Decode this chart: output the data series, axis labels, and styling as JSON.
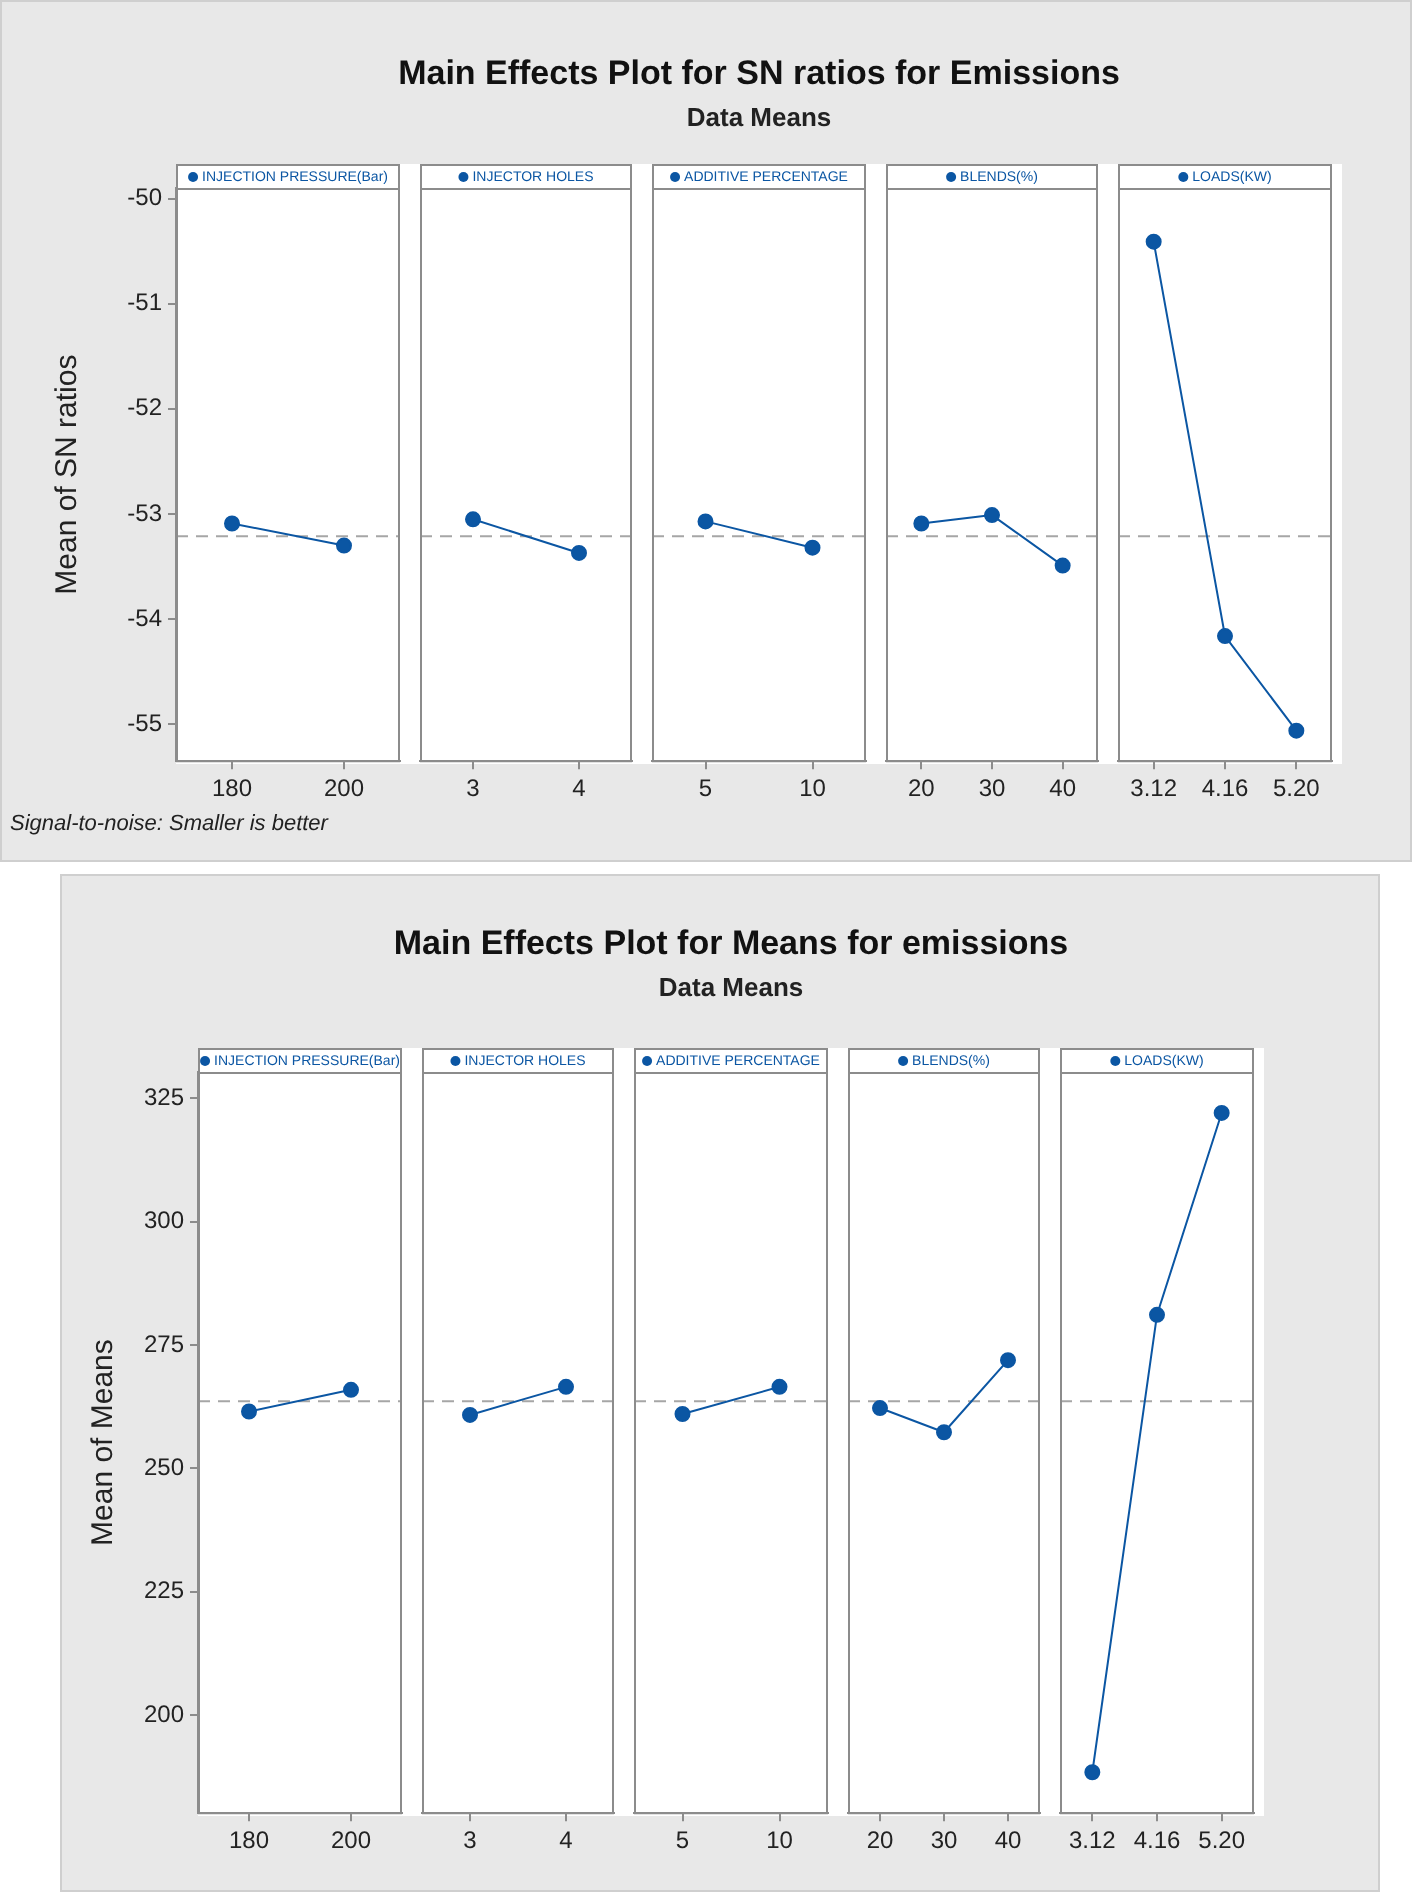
{
  "chart_data": [
    {
      "type": "line",
      "title": "Main Effects Plot for SN ratios for Emissions",
      "subtitle": "Data Means",
      "ylabel": "Mean of SN ratios",
      "annotations": [
        "Signal-to-noise: Smaller is better"
      ],
      "categories": [
        "180",
        "200",
        "3",
        "4",
        "5",
        "10",
        "20",
        "30",
        "40",
        "3.12",
        "4.16",
        "5.20"
      ],
      "series": [
        {
          "name": "INJECTION PRESSURE(Bar)",
          "color": "#0b56a3",
          "values": [
            -53.09,
            -53.3,
            null,
            null,
            null,
            null,
            null,
            null,
            null,
            null,
            null,
            null
          ]
        },
        {
          "name": "INJECTOR HOLES",
          "color": "#0b56a3",
          "values": [
            null,
            null,
            -53.05,
            -53.37,
            null,
            null,
            null,
            null,
            null,
            null,
            null,
            null
          ]
        },
        {
          "name": "ADDITIVE PERCENTAGE",
          "color": "#0b56a3",
          "values": [
            null,
            null,
            null,
            null,
            -53.07,
            -53.32,
            null,
            null,
            null,
            null,
            null,
            null
          ]
        },
        {
          "name": "BLENDS(%)",
          "color": "#0b56a3",
          "values": [
            null,
            null,
            null,
            null,
            null,
            null,
            -53.09,
            -53.01,
            -53.49,
            null,
            null,
            null
          ]
        },
        {
          "name": "LOADS(KW)",
          "color": "#0b56a3",
          "values": [
            null,
            null,
            null,
            null,
            null,
            null,
            null,
            null,
            null,
            -50.41,
            -54.16,
            -55.06
          ]
        }
      ],
      "marker": "circle",
      "legend": "top",
      "ylim": [
        -55.35,
        -49.9
      ],
      "yticks": [
        -55,
        -54,
        -53,
        -52,
        -51,
        -50
      ],
      "ref_lines": [
        {
          "axis": "y",
          "value": -53.21,
          "color": "#a6a6a6",
          "line_style": "dashed"
        }
      ]
    },
    {
      "type": "line",
      "title": "Main Effects Plot for Means for emissions",
      "subtitle": "Data Means",
      "ylabel": "Mean of Means",
      "categories": [
        "180",
        "200",
        "3",
        "4",
        "5",
        "10",
        "20",
        "30",
        "40",
        "3.12",
        "4.16",
        "5.20"
      ],
      "series": [
        {
          "name": "INJECTION PRESSURE(Bar)",
          "color": "#0b56a3",
          "values": [
            261.5,
            265.9,
            null,
            null,
            null,
            null,
            null,
            null,
            null,
            null,
            null,
            null
          ]
        },
        {
          "name": "INJECTOR HOLES",
          "color": "#0b56a3",
          "values": [
            null,
            null,
            260.8,
            266.5,
            null,
            null,
            null,
            null,
            null,
            null,
            null,
            null
          ]
        },
        {
          "name": "ADDITIVE PERCENTAGE",
          "color": "#0b56a3",
          "values": [
            null,
            null,
            null,
            null,
            261.0,
            266.5,
            null,
            null,
            null,
            null,
            null,
            null
          ]
        },
        {
          "name": "BLENDS(%)",
          "color": "#0b56a3",
          "values": [
            null,
            null,
            null,
            null,
            null,
            null,
            262.2,
            257.3,
            271.9,
            null,
            null,
            null
          ]
        },
        {
          "name": "LOADS(KW)",
          "color": "#0b56a3",
          "values": [
            null,
            null,
            null,
            null,
            null,
            null,
            null,
            null,
            null,
            188.4,
            281.1,
            322.0
          ]
        }
      ],
      "marker": "circle",
      "legend": "top",
      "ylim": [
        180.1,
        330.3
      ],
      "yticks": [
        200,
        225,
        250,
        275,
        300,
        325
      ],
      "ref_lines": [
        {
          "axis": "y",
          "value": 263.6,
          "color": "#a6a6a6",
          "line_style": "dashed"
        }
      ]
    }
  ]
}
